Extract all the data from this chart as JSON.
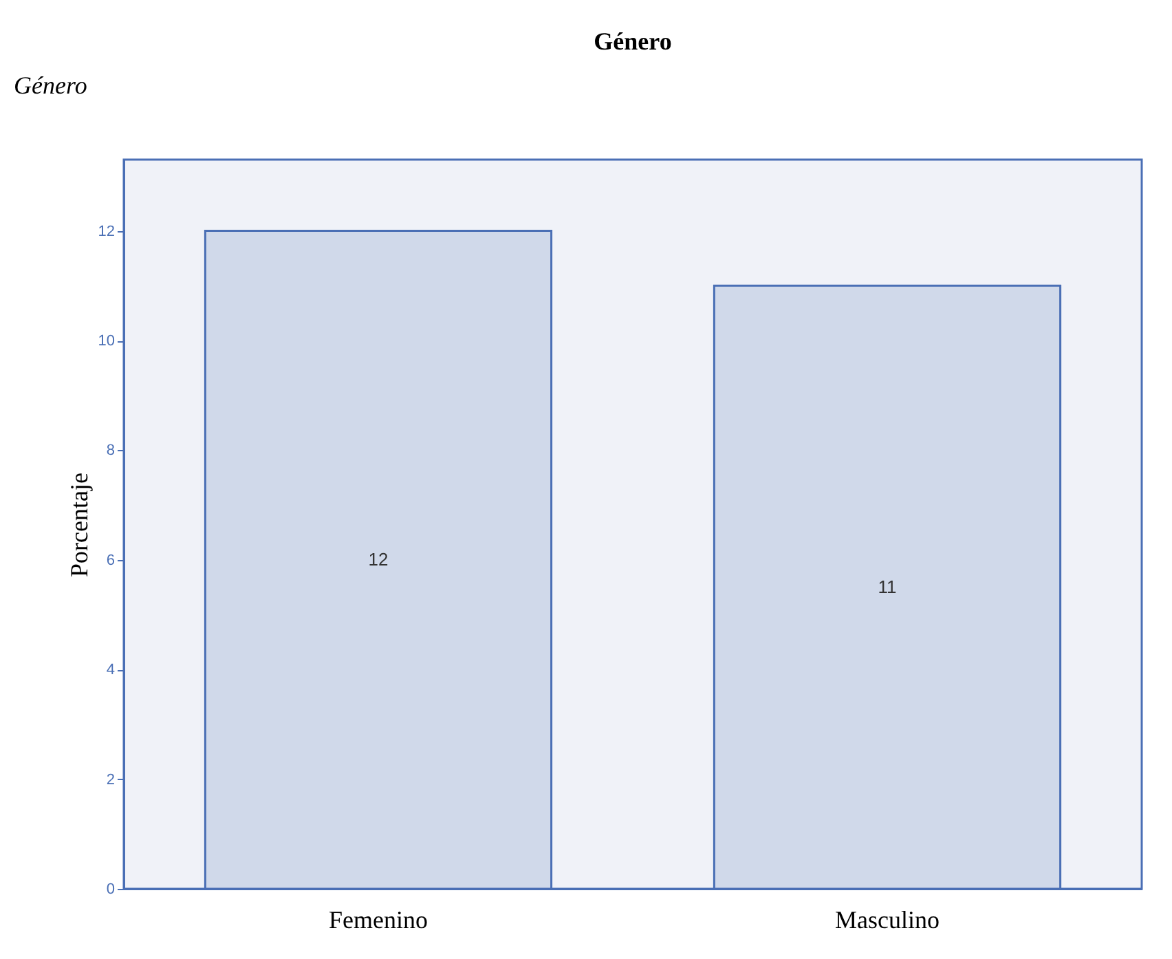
{
  "chart_data": {
    "type": "bar",
    "title": "Género",
    "ylabel": "Porcentaje",
    "annotations": [
      "Género"
    ],
    "categories": [
      "Femenino",
      "Masculino"
    ],
    "series": [
      {
        "color": "#d0d9ea",
        "values": [
          12,
          11
        ]
      }
    ],
    "ylim": [
      0,
      13.3
    ],
    "yticks": [
      0,
      2,
      4,
      6,
      8,
      10,
      12
    ],
    "data_labels": true,
    "grid": false
  }
}
